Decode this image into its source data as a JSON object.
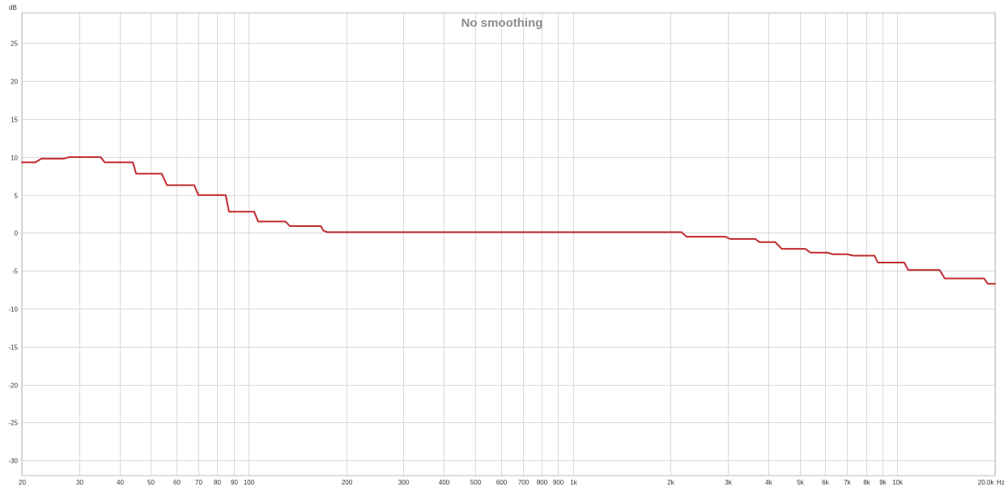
{
  "chart_data": {
    "type": "line",
    "title": "No smoothing",
    "x_scale": "log",
    "xlim": [
      20,
      20000
    ],
    "ylim": [
      -32,
      29
    ],
    "y_unit_label": "dB",
    "x_unit_label": "Hz",
    "grid": true,
    "line_color": "#c0282d",
    "y_ticks": [
      {
        "value": 25,
        "label": "25"
      },
      {
        "value": 20,
        "label": "20"
      },
      {
        "value": 15,
        "label": "15"
      },
      {
        "value": 10,
        "label": "10"
      },
      {
        "value": 5,
        "label": "5"
      },
      {
        "value": 0,
        "label": "0"
      },
      {
        "value": -5,
        "label": "-5"
      },
      {
        "value": -10,
        "label": "-10"
      },
      {
        "value": -15,
        "label": "-15"
      },
      {
        "value": -20,
        "label": "-20"
      },
      {
        "value": -25,
        "label": "-25"
      },
      {
        "value": -30,
        "label": "-30"
      }
    ],
    "x_ticks": [
      {
        "value": 20,
        "label": "20"
      },
      {
        "value": 30,
        "label": "30"
      },
      {
        "value": 40,
        "label": "40"
      },
      {
        "value": 50,
        "label": "50"
      },
      {
        "value": 60,
        "label": "60"
      },
      {
        "value": 70,
        "label": "70"
      },
      {
        "value": 80,
        "label": "80"
      },
      {
        "value": 90,
        "label": "90"
      },
      {
        "value": 100,
        "label": "100"
      },
      {
        "value": 200,
        "label": "200"
      },
      {
        "value": 300,
        "label": "300"
      },
      {
        "value": 400,
        "label": "400"
      },
      {
        "value": 500,
        "label": "500"
      },
      {
        "value": 600,
        "label": "600"
      },
      {
        "value": 700,
        "label": "700"
      },
      {
        "value": 800,
        "label": "800"
      },
      {
        "value": 900,
        "label": "900"
      },
      {
        "value": 1000,
        "label": "1k"
      },
      {
        "value": 2000,
        "label": "2k"
      },
      {
        "value": 3000,
        "label": "3k"
      },
      {
        "value": 4000,
        "label": "4k"
      },
      {
        "value": 5000,
        "label": "5k"
      },
      {
        "value": 6000,
        "label": "6k"
      },
      {
        "value": 7000,
        "label": "7k"
      },
      {
        "value": 8000,
        "label": "8k"
      },
      {
        "value": 9000,
        "label": "9k"
      },
      {
        "value": 10000,
        "label": "10k"
      },
      {
        "value": 20000,
        "label": "20.0k"
      }
    ],
    "series": [
      {
        "x": [
          20,
          22,
          23,
          27,
          28,
          35,
          36,
          44,
          45,
          54,
          56,
          68,
          70,
          85,
          87,
          104,
          107,
          130,
          134,
          167,
          170,
          175,
          2160,
          2240,
          2950,
          3050,
          3650,
          3750,
          4200,
          4400,
          5200,
          5400,
          6100,
          6300,
          7000,
          7300,
          8500,
          8700,
          10500,
          10800,
          13500,
          14000,
          18500,
          19000,
          20000
        ],
        "y": [
          9.3,
          9.3,
          9.8,
          9.8,
          10.0,
          10.0,
          9.3,
          9.3,
          7.8,
          7.8,
          6.3,
          6.3,
          5.0,
          5.0,
          2.8,
          2.8,
          1.5,
          1.5,
          0.9,
          0.9,
          0.3,
          0.1,
          0.1,
          -0.5,
          -0.5,
          -0.8,
          -0.8,
          -1.2,
          -1.2,
          -2.1,
          -2.1,
          -2.6,
          -2.6,
          -2.8,
          -2.8,
          -3.0,
          -3.0,
          -3.9,
          -3.9,
          -4.9,
          -4.9,
          -6.0,
          -6.0,
          -6.7,
          -6.7
        ]
      }
    ]
  }
}
